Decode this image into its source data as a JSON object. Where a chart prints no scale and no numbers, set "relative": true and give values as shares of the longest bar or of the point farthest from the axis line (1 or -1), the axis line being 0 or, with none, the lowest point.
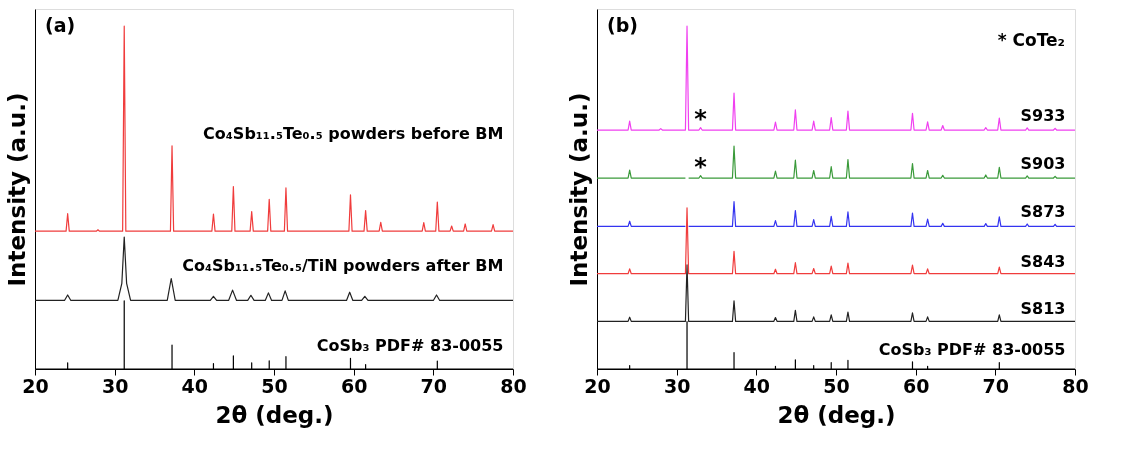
{
  "chart_data": [
    {
      "type": "line",
      "relative": true,
      "xlabel": "2θ (deg.)",
      "ylabel": "Intensity (a.u.)",
      "xlim": [
        20,
        80
      ],
      "xticks": [
        20,
        30,
        40,
        50,
        60,
        70,
        80
      ],
      "annotations": [
        "(a)"
      ],
      "series": [
        {
          "name": "CoSb₃ PDF# 83-0055",
          "color": "#000000",
          "x": [
            20,
            24.1,
            24.1,
            24.1,
            31.2,
            31.2,
            31.2,
            37.2,
            37.2,
            37.2,
            42.4,
            42.4,
            42.4,
            44.9,
            44.9,
            44.9,
            47.2,
            47.2,
            47.2,
            49.4,
            49.4,
            49.4,
            51.5,
            51.5,
            51.5,
            59.6,
            59.6,
            59.6,
            61.5,
            61.5,
            61.5,
            70.5,
            70.5,
            70.5,
            80
          ],
          "values": [
            0,
            0,
            0.018,
            0,
            0,
            0.199,
            0,
            0,
            0.07,
            0,
            0,
            0.016,
            0,
            0,
            0.038,
            0,
            0,
            0.018,
            0,
            0,
            0.024,
            0,
            0,
            0.036,
            0,
            0,
            0.031,
            0,
            0,
            0.013,
            0,
            0,
            0.023,
            0,
            0
          ]
        },
        {
          "name": "Co₄Sb₁₁.₅Te₀.₅/TiN powders after BM",
          "color": "#222222",
          "x": [
            20,
            23.7,
            24.1,
            24.5,
            30.4,
            30.9,
            31.2,
            31.5,
            32.0,
            36.6,
            37.1,
            37.6,
            42.0,
            42.4,
            42.8,
            44.3,
            44.8,
            45.3,
            46.7,
            47.1,
            47.5,
            48.9,
            49.3,
            49.7,
            51.0,
            51.4,
            51.8,
            59.1,
            59.5,
            59.9,
            61.0,
            61.4,
            61.8,
            70.0,
            70.4,
            70.8,
            80
          ],
          "values": [
            0.2,
            0.2,
            0.216,
            0.2,
            0.2,
            0.25,
            0.385,
            0.25,
            0.2,
            0.2,
            0.264,
            0.2,
            0.2,
            0.212,
            0.2,
            0.2,
            0.23,
            0.2,
            0.2,
            0.215,
            0.2,
            0.2,
            0.222,
            0.2,
            0.2,
            0.228,
            0.2,
            0.2,
            0.224,
            0.2,
            0.2,
            0.212,
            0.2,
            0.2,
            0.216,
            0.2,
            0.2
          ]
        },
        {
          "name": "Co₄Sb₁₁.₅Te₀.₅ powders before BM",
          "color": "#f03c3c",
          "x": [
            20,
            23.9,
            24.1,
            24.3,
            27.7,
            27.9,
            28.1,
            31.0,
            31.2,
            31.4,
            37.0,
            37.2,
            37.4,
            42.2,
            42.4,
            42.6,
            44.7,
            44.9,
            45.1,
            47.0,
            47.2,
            47.4,
            49.2,
            49.4,
            49.6,
            51.3,
            51.5,
            51.7,
            59.4,
            59.6,
            59.8,
            61.3,
            61.5,
            61.7,
            63.2,
            63.4,
            63.6,
            68.6,
            68.8,
            69.0,
            70.3,
            70.5,
            70.7,
            72.1,
            72.3,
            72.5,
            73.8,
            74.0,
            74.2,
            77.3,
            77.5,
            77.7,
            80
          ],
          "values": [
            0.402,
            0.402,
            0.453,
            0.402,
            0.402,
            0.406,
            0.402,
            0.402,
            1,
            0.402,
            0.402,
            0.651,
            0.402,
            0.402,
            0.452,
            0.402,
            0.402,
            0.532,
            0.402,
            0.402,
            0.459,
            0.402,
            0.402,
            0.495,
            0.402,
            0.402,
            0.528,
            0.402,
            0.402,
            0.508,
            0.402,
            0.402,
            0.462,
            0.402,
            0.402,
            0.428,
            0.402,
            0.402,
            0.427,
            0.402,
            0.402,
            0.487,
            0.402,
            0.402,
            0.417,
            0.402,
            0.402,
            0.423,
            0.402,
            0.402,
            0.421,
            0.402,
            0.402
          ]
        }
      ]
    },
    {
      "type": "line",
      "relative": true,
      "xlabel": "2θ (deg.)",
      "ylabel": "Intensity (a.u.)",
      "xlim": [
        20,
        80
      ],
      "xticks": [
        20,
        30,
        40,
        50,
        60,
        70,
        80
      ],
      "annotations": [
        "(b)",
        "*  CoTe₂",
        {
          "text": "*",
          "x": 33.0,
          "y": 0.704
        },
        {
          "text": "*",
          "x": 33.0,
          "y": 0.564
        }
      ],
      "series": [
        {
          "name": "CoSb₃ PDF# 83-0055",
          "color": "#000000",
          "x": [
            20,
            24.1,
            24.1,
            24.1,
            31.3,
            31.3,
            31.3,
            37.2,
            37.2,
            37.2,
            42.4,
            42.4,
            42.4,
            44.9,
            44.9,
            44.9,
            47.2,
            47.2,
            47.2,
            49.4,
            49.4,
            49.4,
            51.5,
            51.5,
            51.5,
            59.6,
            59.6,
            59.6,
            61.5,
            61.5,
            61.5,
            70.5,
            70.5,
            70.5,
            80
          ],
          "values": [
            0,
            0,
            0.01,
            0,
            0,
            0.138,
            0,
            0,
            0.048,
            0,
            0,
            0.008,
            0,
            0,
            0.027,
            0,
            0,
            0.01,
            0,
            0,
            0.019,
            0,
            0,
            0.025,
            0,
            0,
            0.021,
            0,
            0,
            0.008,
            0,
            0,
            0.019,
            0,
            0
          ]
        },
        {
          "name": "S813",
          "color": "#222222",
          "x": [
            20,
            23.9,
            24.1,
            24.3,
            31.1,
            31.3,
            31.5,
            37.0,
            37.2,
            37.4,
            42.2,
            42.4,
            42.6,
            44.7,
            44.9,
            45.1,
            47.0,
            47.2,
            47.4,
            49.2,
            49.4,
            49.6,
            51.3,
            51.5,
            51.7,
            59.4,
            59.6,
            59.8,
            61.3,
            61.5,
            61.7,
            70.3,
            70.5,
            70.7,
            80
          ],
          "values": [
            0.139,
            0.139,
            0.151,
            0.139,
            0.139,
            0.304,
            0.139,
            0.139,
            0.199,
            0.139,
            0.139,
            0.15,
            0.139,
            0.139,
            0.171,
            0.139,
            0.139,
            0.152,
            0.139,
            0.139,
            0.158,
            0.139,
            0.139,
            0.166,
            0.139,
            0.139,
            0.164,
            0.139,
            0.139,
            0.152,
            0.139,
            0.139,
            0.158,
            0.139,
            0.139
          ]
        },
        {
          "name": "S843",
          "color": "#f03c3c",
          "x": [
            20,
            23.9,
            24.1,
            24.3,
            31.1,
            31.3,
            31.5,
            37.0,
            37.2,
            37.4,
            42.2,
            42.4,
            42.6,
            44.7,
            44.9,
            45.1,
            47.0,
            47.2,
            47.4,
            49.2,
            49.4,
            49.6,
            51.3,
            51.5,
            51.7,
            59.4,
            59.6,
            59.8,
            61.3,
            61.5,
            61.7,
            70.3,
            70.5,
            70.7,
            80
          ],
          "values": [
            0.278,
            0.278,
            0.292,
            0.278,
            0.278,
            0.47,
            0.278,
            0.278,
            0.343,
            0.278,
            0.278,
            0.291,
            0.278,
            0.278,
            0.31,
            0.278,
            0.278,
            0.293,
            0.278,
            0.278,
            0.3,
            0.278,
            0.278,
            0.309,
            0.278,
            0.278,
            0.303,
            0.278,
            0.278,
            0.292,
            0.278,
            0.278,
            0.297,
            0.278,
            0.278
          ]
        },
        {
          "name": "S873",
          "color": "#3434f0",
          "x": [
            20,
            23.9,
            24.1,
            24.3,
            31.1,
            31.3,
            31.5,
            37.0,
            37.2,
            37.4,
            42.2,
            42.4,
            42.6,
            44.7,
            44.9,
            45.1,
            47.0,
            47.2,
            47.4,
            49.2,
            49.4,
            49.6,
            51.3,
            51.5,
            51.7,
            59.4,
            59.6,
            59.8,
            61.3,
            61.5,
            61.7,
            63.2,
            63.4,
            63.6,
            68.6,
            68.8,
            69.0,
            70.3,
            70.5,
            70.7,
            73.8,
            74.0,
            74.2,
            77.3,
            77.5,
            77.7,
            80
          ],
          "values": [
            0.416,
            0.416,
            0.431,
            0.416,
            0.416,
            null,
            0.416,
            0.416,
            0.488,
            0.416,
            0.416,
            0.433,
            0.416,
            0.416,
            0.462,
            0.416,
            0.416,
            0.436,
            0.416,
            0.416,
            0.445,
            0.416,
            0.416,
            0.458,
            0.416,
            0.416,
            0.455,
            0.416,
            0.416,
            0.437,
            0.416,
            0.416,
            0.425,
            0.416,
            0.416,
            0.424,
            0.416,
            0.416,
            0.444,
            0.416,
            0.416,
            0.423,
            0.416,
            0.416,
            0.422,
            0.416,
            0.416
          ]
        },
        {
          "name": "S903",
          "color": "#3a9a3a",
          "x": [
            20,
            23.9,
            24.1,
            24.3,
            31.1,
            31.3,
            31.5,
            32.8,
            33.0,
            33.2,
            37.0,
            37.2,
            37.4,
            42.2,
            42.4,
            42.6,
            44.7,
            44.9,
            45.1,
            47.0,
            47.2,
            47.4,
            49.2,
            49.4,
            49.6,
            51.3,
            51.5,
            51.7,
            59.4,
            59.6,
            59.8,
            61.3,
            61.5,
            61.7,
            63.2,
            63.4,
            63.6,
            68.6,
            68.8,
            69.0,
            70.3,
            70.5,
            70.7,
            73.8,
            74.0,
            74.2,
            77.3,
            77.5,
            77.7,
            80
          ],
          "values": [
            0.557,
            0.557,
            0.58,
            0.557,
            0.557,
            null,
            0.557,
            0.557,
            0.564,
            0.557,
            0.557,
            0.65,
            0.557,
            0.557,
            0.577,
            0.557,
            0.557,
            0.609,
            0.557,
            0.557,
            0.579,
            0.557,
            0.557,
            0.59,
            0.557,
            0.557,
            0.611,
            0.557,
            0.557,
            0.599,
            0.557,
            0.557,
            0.579,
            0.557,
            0.557,
            0.565,
            0.557,
            0.557,
            0.566,
            0.557,
            0.557,
            0.588,
            0.557,
            0.557,
            0.563,
            0.557,
            0.557,
            0.562,
            0.557,
            0.557
          ]
        },
        {
          "name": "S933",
          "color": "#f040f0",
          "x": [
            20,
            23.9,
            24.1,
            24.3,
            27.8,
            28.0,
            28.2,
            31.1,
            31.3,
            31.5,
            32.8,
            33.0,
            33.2,
            37.0,
            37.2,
            37.4,
            42.2,
            42.4,
            42.6,
            44.7,
            44.9,
            45.1,
            47.0,
            47.2,
            47.4,
            49.2,
            49.4,
            49.6,
            51.3,
            51.5,
            51.7,
            59.4,
            59.6,
            59.8,
            61.3,
            61.5,
            61.7,
            63.2,
            63.4,
            63.6,
            68.6,
            68.8,
            69.0,
            70.3,
            70.5,
            70.7,
            73.8,
            74.0,
            74.2,
            77.3,
            77.5,
            77.7,
            80
          ],
          "values": [
            0.697,
            0.697,
            0.723,
            0.697,
            0.697,
            0.701,
            0.697,
            0.697,
            1,
            0.697,
            0.697,
            0.704,
            0.697,
            0.697,
            0.805,
            0.697,
            0.697,
            0.72,
            0.697,
            0.697,
            0.756,
            0.697,
            0.697,
            0.723,
            0.697,
            0.697,
            0.733,
            0.697,
            0.697,
            0.752,
            0.697,
            0.697,
            0.746,
            0.697,
            0.697,
            0.721,
            0.697,
            0.697,
            0.71,
            0.697,
            0.697,
            0.704,
            0.697,
            0.697,
            0.732,
            0.697,
            0.697,
            0.703,
            0.697,
            0.697,
            0.702,
            0.697,
            0.697
          ]
        }
      ]
    }
  ]
}
